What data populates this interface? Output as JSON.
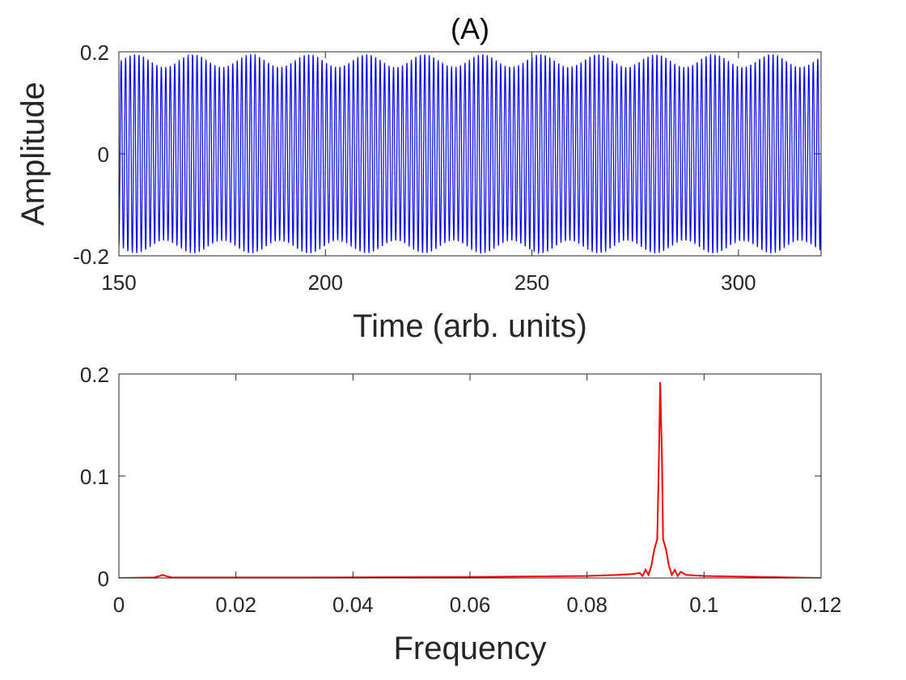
{
  "chart_data": [
    {
      "type": "line",
      "title": "(A)",
      "xlabel": "Time (arb. units)",
      "ylabel": "Amplitude",
      "xlim": [
        150,
        320
      ],
      "ylim": [
        -0.2,
        0.2
      ],
      "xticks": [
        150,
        200,
        250,
        300
      ],
      "yticks": [
        -0.2,
        0,
        0.2
      ],
      "xtick_labels": [
        "150",
        "200",
        "250",
        "300"
      ],
      "ytick_labels": [
        "-0.2",
        "0",
        "0.2"
      ],
      "grid": false,
      "series": [
        {
          "color": "#0000ff",
          "carrier_frequency": 0.0925,
          "envelope_min": 0.17,
          "envelope_max": 0.195
        }
      ]
    },
    {
      "type": "line",
      "title": "",
      "xlabel": "Frequency",
      "ylabel": "",
      "xlim": [
        0,
        0.12
      ],
      "ylim": [
        0,
        0.2
      ],
      "xticks": [
        0,
        0.02,
        0.04,
        0.06,
        0.08,
        0.1,
        0.12
      ],
      "yticks": [
        0,
        0.1,
        0.2
      ],
      "xtick_labels": [
        "0",
        "0.02",
        "0.04",
        "0.06",
        "0.08",
        "0.1",
        "0.12"
      ],
      "ytick_labels": [
        "0",
        "0.1",
        "0.2"
      ],
      "grid": false,
      "series": [
        {
          "color": "#ff0000",
          "x": [
            0,
            0.006,
            0.007,
            0.0075,
            0.008,
            0.009,
            0.03,
            0.06,
            0.08,
            0.085,
            0.088,
            0.089,
            0.0895,
            0.09,
            0.0905,
            0.091,
            0.0915,
            0.092,
            0.0923,
            0.0925,
            0.0928,
            0.093,
            0.0935,
            0.094,
            0.0945,
            0.095,
            0.0955,
            0.096,
            0.097,
            0.1,
            0.11,
            0.12
          ],
          "y": [
            0,
            0.0005,
            0.002,
            0.003,
            0.002,
            0.0005,
            0.0005,
            0.001,
            0.002,
            0.003,
            0.004,
            0.005,
            0.002,
            0.008,
            0.003,
            0.012,
            0.028,
            0.038,
            0.12,
            0.192,
            0.12,
            0.038,
            0.028,
            0.012,
            0.003,
            0.008,
            0.002,
            0.006,
            0.003,
            0.002,
            0.001,
            0
          ]
        }
      ]
    }
  ]
}
